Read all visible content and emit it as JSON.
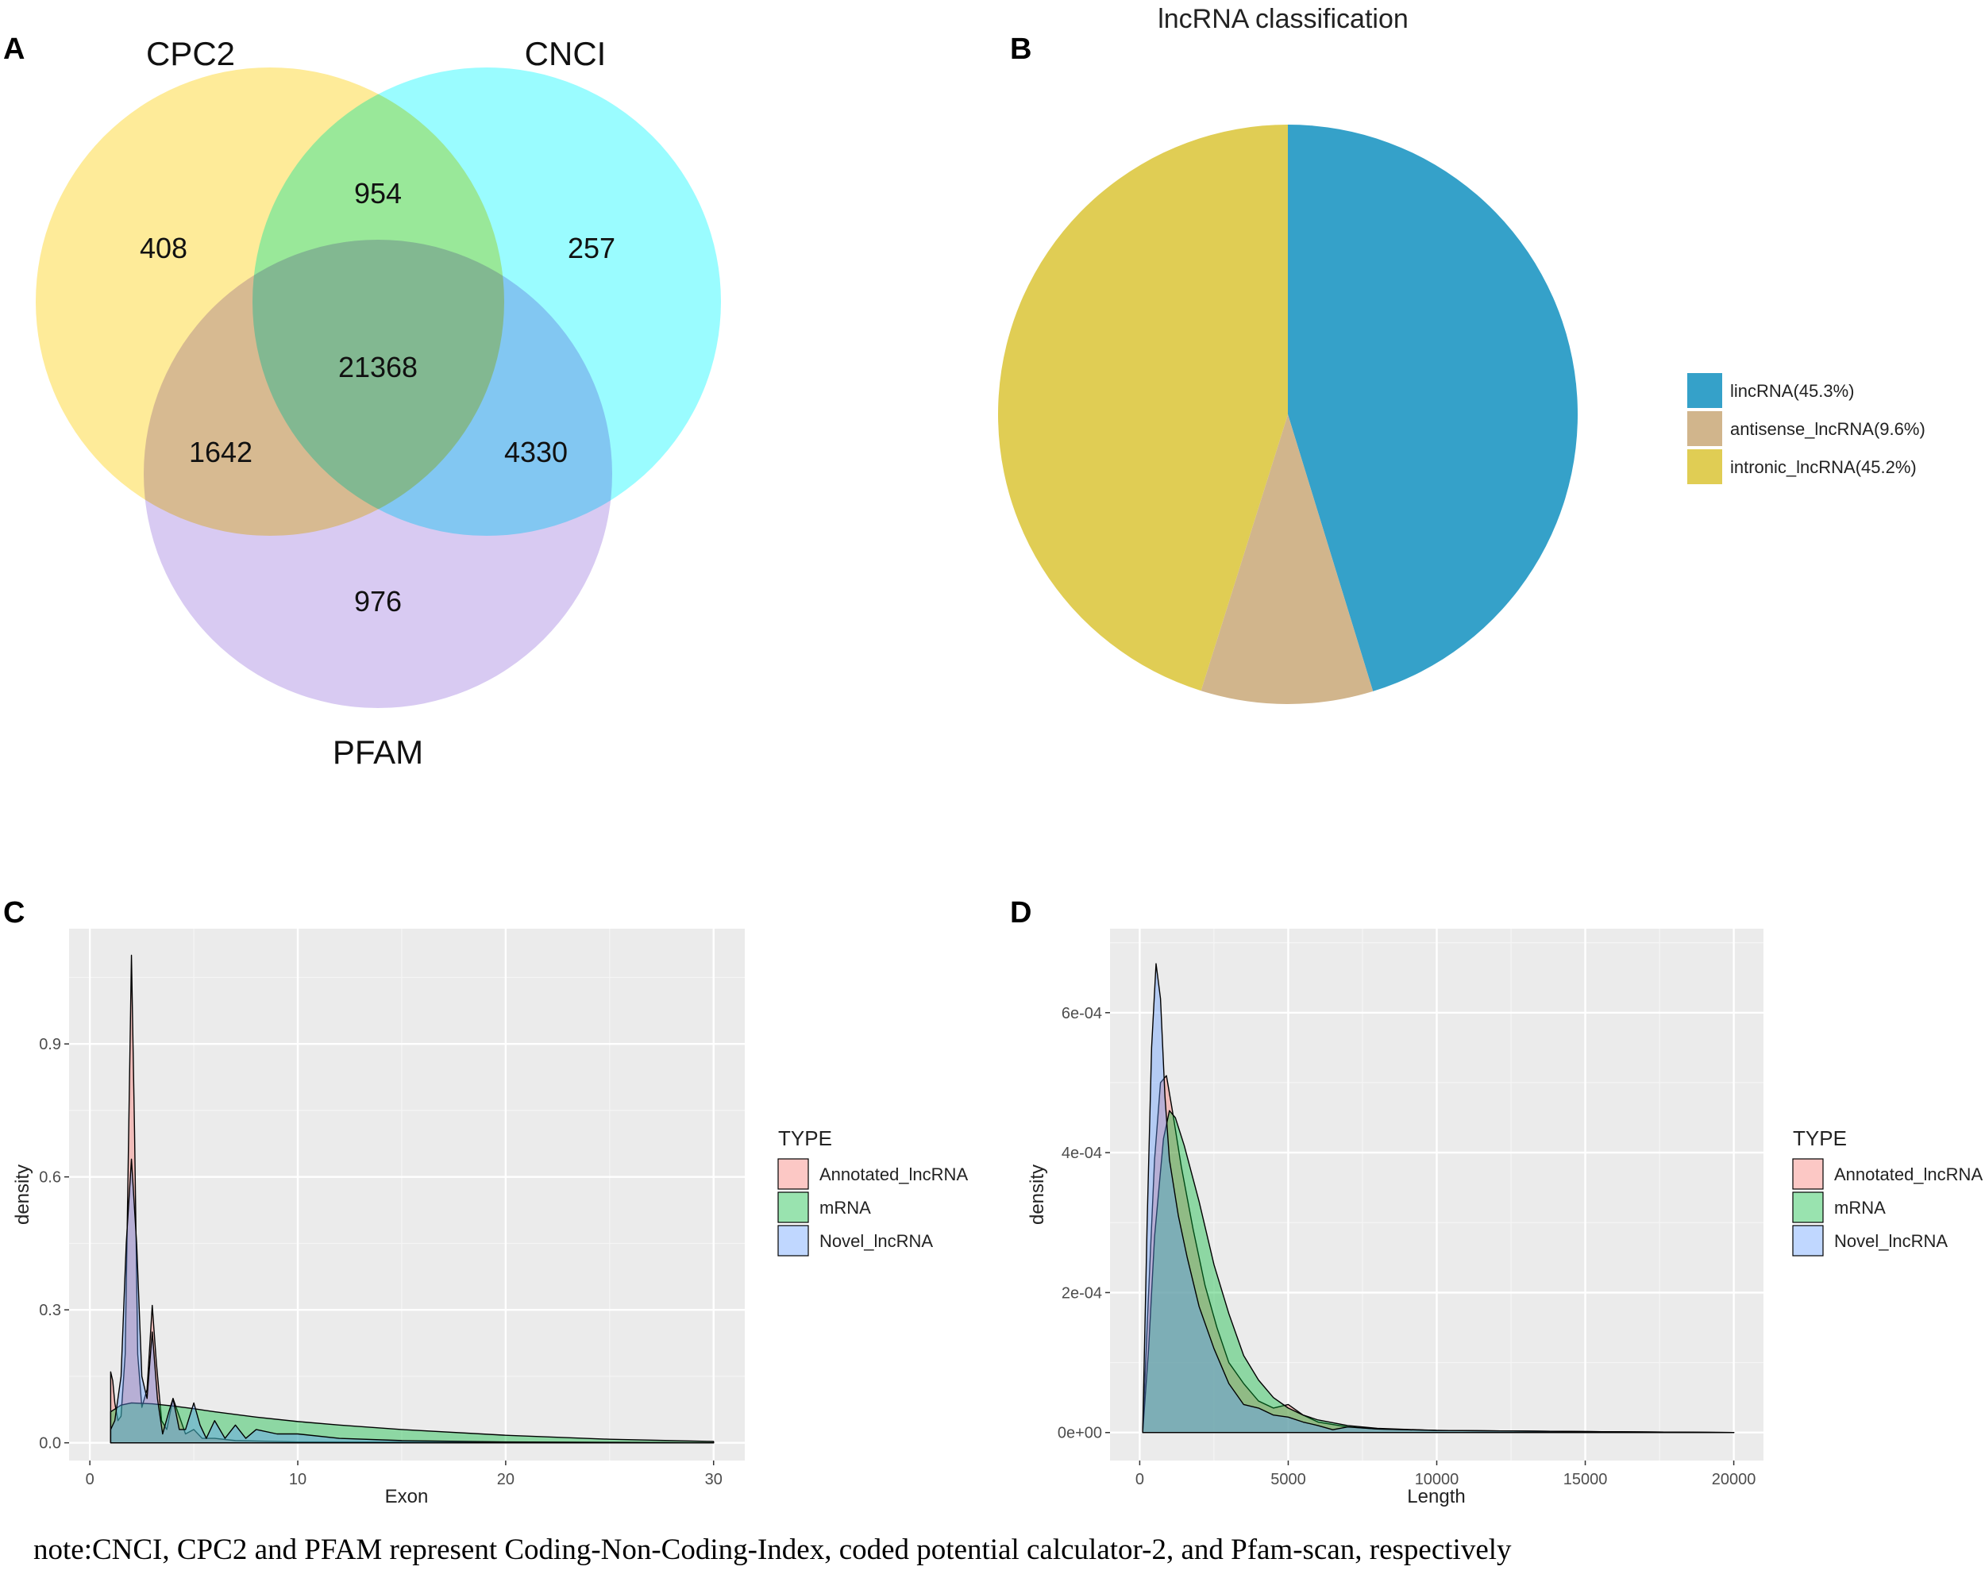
{
  "note": "note:CNCI, CPC2 and PFAM represent Coding-Non-Coding-Index, coded potential calculator-2, and Pfam-scan, respectively",
  "chart_data": [
    {
      "panel": "A",
      "type": "venn",
      "sets": [
        {
          "name": "CPC2",
          "color": "#fde36e"
        },
        {
          "name": "CNCI",
          "color": "#6ffbff"
        },
        {
          "name": "PFAM",
          "color": "#c8b3ec"
        }
      ],
      "regions": {
        "CPC2_only": "408",
        "CNCI_only": "257",
        "PFAM_only": "976",
        "CPC2_CNCI": "954",
        "CPC2_PFAM": "1642",
        "CNCI_PFAM": "4330",
        "all": "21368"
      }
    },
    {
      "panel": "B",
      "type": "pie",
      "title": "lncRNA classification",
      "slices": [
        {
          "label": "lincRNA(45.3%)",
          "value": 45.3,
          "color": "#35a1c9"
        },
        {
          "label": "antisense_lncRNA(9.6%)",
          "value": 9.6,
          "color": "#d1b58c"
        },
        {
          "label": "intronic_lncRNA(45.2%)",
          "value": 45.2,
          "color": "#e0cd54"
        }
      ]
    },
    {
      "panel": "C",
      "type": "area",
      "xlabel": "Exon",
      "ylabel": "density",
      "xlim": [
        -1,
        31.5
      ],
      "ylim": [
        -0.04,
        1.16
      ],
      "xticks": [
        0,
        10,
        20,
        30
      ],
      "xtick_labels": [
        "0",
        "10",
        "20",
        "30"
      ],
      "yticks": [
        0.0,
        0.3,
        0.6,
        0.9
      ],
      "ytick_labels": [
        "0.0",
        "0.3",
        "0.6",
        "0.9"
      ],
      "legend_title": "TYPE",
      "series": [
        {
          "name": "Annotated_lncRNA",
          "color": "#f8766d",
          "x": [
            1.0,
            1.1,
            1.2,
            1.35,
            1.5,
            1.7,
            1.85,
            2.0,
            2.15,
            2.3,
            2.5,
            2.75,
            3.0,
            3.2,
            3.45,
            3.7,
            4.0,
            4.3,
            4.6,
            5.0,
            5.4,
            6.0,
            7.0,
            8.0,
            10.0,
            30.0
          ],
          "y": [
            0.16,
            0.14,
            0.09,
            0.05,
            0.06,
            0.2,
            0.65,
            1.1,
            0.7,
            0.2,
            0.08,
            0.12,
            0.31,
            0.18,
            0.05,
            0.03,
            0.1,
            0.06,
            0.02,
            0.03,
            0.01,
            0.01,
            0.005,
            0.004,
            0.002,
            0.0
          ]
        },
        {
          "name": "mRNA",
          "color": "#00ba38",
          "x": [
            1.0,
            1.5,
            2.0,
            3.0,
            4.0,
            5.0,
            6.0,
            8.0,
            10.0,
            12.0,
            15.0,
            20.0,
            25.0,
            30.0
          ],
          "y": [
            0.07,
            0.085,
            0.09,
            0.088,
            0.083,
            0.077,
            0.07,
            0.058,
            0.048,
            0.04,
            0.03,
            0.017,
            0.008,
            0.003
          ]
        },
        {
          "name": "Novel_lncRNA",
          "color": "#619cff",
          "x": [
            1.0,
            1.2,
            1.5,
            1.75,
            2.0,
            2.25,
            2.5,
            2.75,
            3.0,
            3.25,
            3.5,
            3.8,
            4.0,
            4.3,
            4.6,
            5.0,
            5.3,
            5.6,
            6.0,
            6.5,
            7.0,
            7.5,
            8.0,
            9.0,
            10.0,
            12.0,
            15.0,
            20.0,
            25.0,
            30.0
          ],
          "y": [
            0.03,
            0.05,
            0.15,
            0.45,
            0.64,
            0.45,
            0.15,
            0.1,
            0.25,
            0.1,
            0.02,
            0.07,
            0.1,
            0.03,
            0.03,
            0.09,
            0.04,
            0.01,
            0.05,
            0.01,
            0.04,
            0.01,
            0.03,
            0.02,
            0.02,
            0.01,
            0.005,
            0.002,
            0.001,
            0.0
          ]
        }
      ]
    },
    {
      "panel": "D",
      "type": "area",
      "xlabel": "Length",
      "ylabel": "density",
      "xlim": [
        -1000,
        21000
      ],
      "ylim": [
        -4e-05,
        0.00072
      ],
      "xticks": [
        0,
        5000,
        10000,
        15000,
        20000
      ],
      "xtick_labels": [
        "0",
        "5000",
        "10000",
        "15000",
        "20000"
      ],
      "yticks": [
        0,
        0.0002,
        0.0004,
        0.0006
      ],
      "ytick_labels": [
        "0e+00",
        "2e-04",
        "4e-04",
        "6e-04"
      ],
      "legend_title": "TYPE",
      "series": [
        {
          "name": "Annotated_lncRNA",
          "color": "#f8766d",
          "x": [
            100,
            300,
            500,
            700,
            900,
            1100,
            1400,
            1800,
            2200,
            2600,
            3000,
            3500,
            4000,
            4500,
            5000,
            5500,
            6000,
            7000,
            8000,
            10000,
            13000,
            16000,
            20000
          ],
          "y": [
            0.0,
            0.0002,
            0.00039,
            0.0005,
            0.00051,
            0.00046,
            0.00038,
            0.00029,
            0.00021,
            0.00015,
            0.0001,
            7e-05,
            4.5e-05,
            3.5e-05,
            4e-05,
            2.5e-05,
            1.5e-05,
            8e-06,
            5e-06,
            3e-06,
            2e-06,
            1e-06,
            0.0
          ]
        },
        {
          "name": "mRNA",
          "color": "#00ba38",
          "x": [
            100,
            300,
            500,
            800,
            1000,
            1200,
            1500,
            2000,
            2500,
            3000,
            3500,
            4000,
            4500,
            5000,
            5500,
            6000,
            7000,
            8000,
            10000,
            13000,
            16000,
            20000
          ],
          "y": [
            0.0,
            0.00012,
            0.00028,
            0.00042,
            0.00046,
            0.00045,
            0.00041,
            0.00033,
            0.00024,
            0.00017,
            0.00011,
            7.5e-05,
            5e-05,
            3.5e-05,
            2.5e-05,
            1.8e-05,
            1e-05,
            6e-06,
            3e-06,
            2e-06,
            1e-06,
            0.0
          ]
        },
        {
          "name": "Novel_lncRNA",
          "color": "#619cff",
          "x": [
            100,
            250,
            400,
            550,
            700,
            850,
            1000,
            1300,
            1600,
            2000,
            2500,
            3000,
            3500,
            4000,
            4500,
            5000,
            5500,
            6000,
            6500,
            7000,
            8000,
            10000,
            13000,
            16000,
            20000
          ],
          "y": [
            0.0,
            0.0003,
            0.00055,
            0.00067,
            0.00062,
            0.00048,
            0.00039,
            0.00031,
            0.00025,
            0.00018,
            0.00012,
            7e-05,
            4e-05,
            3.5e-05,
            2.5e-05,
            2.2e-05,
            1.5e-05,
            1e-05,
            4e-06,
            8e-06,
            5e-06,
            3e-06,
            2e-06,
            1e-06,
            0.0
          ]
        }
      ]
    }
  ]
}
